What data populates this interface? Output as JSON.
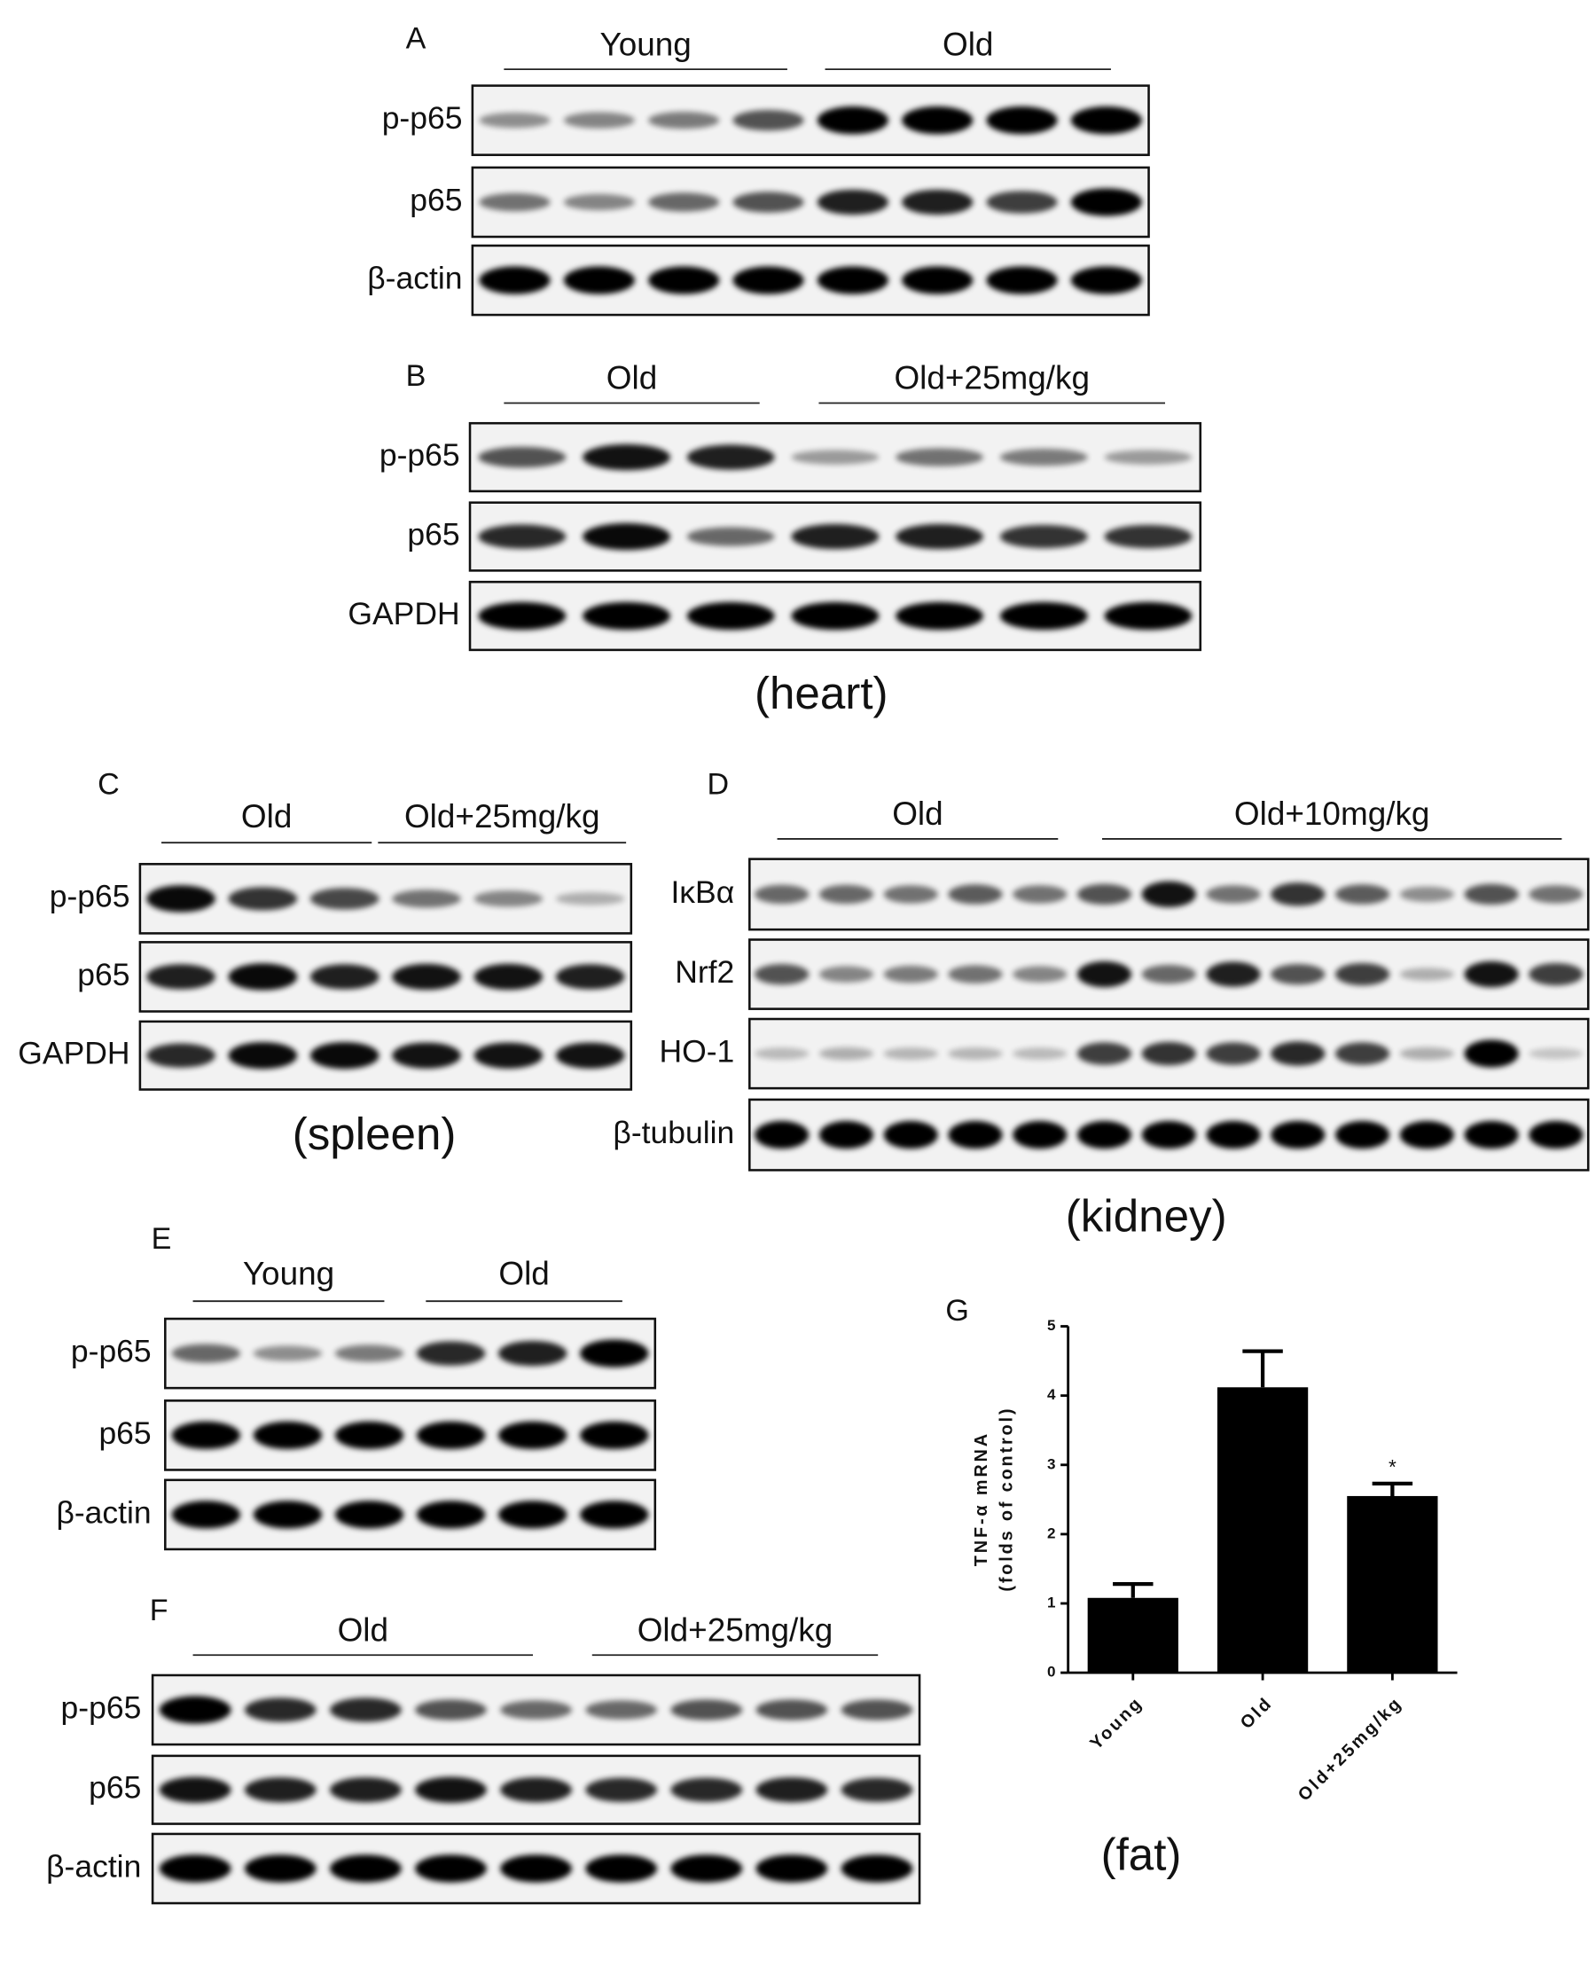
{
  "panels": [
    {
      "label": "A",
      "groups": [
        "Young",
        "Old"
      ],
      "rows": [
        "p-p65",
        "p65",
        "β-actin"
      ]
    },
    {
      "label": "B",
      "groups": [
        "Old",
        "Old+25mg/kg"
      ],
      "rows": [
        "p-p65",
        "p65",
        "GAPDH"
      ]
    },
    {
      "label": "C",
      "groups": [
        "Old",
        "Old+25mg/kg"
      ],
      "rows": [
        "p-p65",
        "p65",
        "GAPDH"
      ]
    },
    {
      "label": "D",
      "groups": [
        "Old",
        "Old+10mg/kg"
      ],
      "rows": [
        "IκBα",
        "Nrf2",
        "HO-1",
        "β-tubulin"
      ]
    },
    {
      "label": "E",
      "groups": [
        "Young",
        "Old"
      ],
      "rows": [
        "p-p65",
        "p65",
        "β-actin"
      ]
    },
    {
      "label": "F",
      "groups": [
        "Old",
        "Old+25mg/kg"
      ],
      "rows": [
        "p-p65",
        "p65",
        "β-actin"
      ]
    }
  ],
  "captions": [
    "(heart)",
    "(spleen)",
    "(kidney)",
    "(fat)"
  ],
  "chart_data": {
    "type": "bar",
    "label": "G",
    "y_label": [
      "TNF-α mRNA",
      "(folds of control)"
    ],
    "categories": [
      "Young",
      "Old",
      "Old+25mg/kg"
    ],
    "values": [
      1.08,
      4.12,
      2.55
    ],
    "errors": [
      0.2,
      0.52,
      0.18
    ],
    "significance_labels": [
      null,
      null,
      "*"
    ],
    "color": "#000000",
    "ylim": [
      0,
      5
    ],
    "yticks": [
      0,
      1,
      2,
      3,
      4,
      5
    ]
  }
}
